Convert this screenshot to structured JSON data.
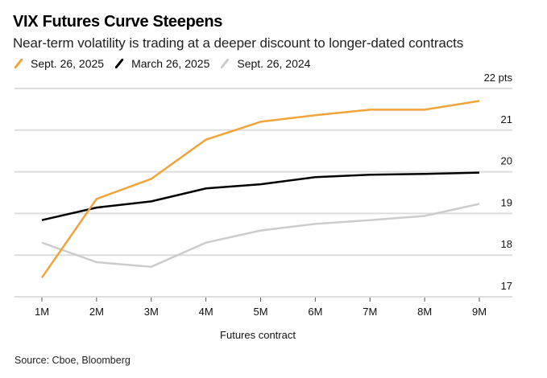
{
  "chart_data": {
    "type": "line",
    "title": "VIX Futures Curve Steepens",
    "subtitle": "Near-term volatility is trading at a deeper discount to longer-dated contracts",
    "xlabel": "Futures contract",
    "ylabel": "",
    "y_unit_label": "pts",
    "categories": [
      "1M",
      "2M",
      "3M",
      "4M",
      "5M",
      "6M",
      "7M",
      "8M",
      "9M"
    ],
    "ylim": [
      17,
      22
    ],
    "yticks": [
      17,
      18,
      19,
      20,
      21,
      22
    ],
    "ytick_labels": [
      "17",
      "18",
      "19",
      "20",
      "21",
      "22 pts"
    ],
    "grid": true,
    "legend_position": "top-left",
    "series": [
      {
        "name": "Sept. 26, 2025",
        "color": "#f0a43a",
        "values": [
          17.46,
          19.35,
          19.83,
          20.77,
          21.2,
          21.36,
          21.49,
          21.49,
          21.7
        ]
      },
      {
        "name": "March 26, 2025",
        "color": "#000000",
        "values": [
          18.84,
          19.14,
          19.29,
          19.6,
          19.7,
          19.87,
          19.93,
          19.95,
          19.98
        ]
      },
      {
        "name": "Sept. 26, 2024",
        "color": "#cccccc",
        "values": [
          18.3,
          17.83,
          17.72,
          18.3,
          18.59,
          18.75,
          18.84,
          18.94,
          19.23
        ]
      }
    ],
    "source": "Source: Cboe, Bloomberg"
  }
}
